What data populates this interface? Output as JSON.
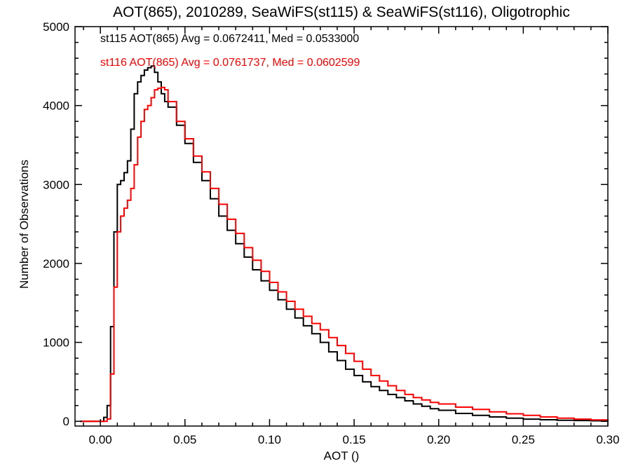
{
  "chart_data": {
    "type": "line",
    "title": "AOT(865), 2010289, SeaWiFS(st115) & SeaWiFS(st116), Oligotrophic",
    "xlabel": "AOT ()",
    "ylabel": "Number of Observations",
    "xlim": [
      -0.015,
      0.3
    ],
    "ylim": [
      -60,
      5000
    ],
    "x_ticks": [
      0.0,
      0.05,
      0.1,
      0.15,
      0.2,
      0.25,
      0.3
    ],
    "x_tick_labels": [
      "0.00",
      "0.05",
      "0.10",
      "0.15",
      "0.20",
      "0.25",
      "0.30"
    ],
    "y_ticks": [
      0,
      1000,
      2000,
      3000,
      4000,
      5000
    ],
    "y_tick_labels": [
      "0",
      "1000",
      "2000",
      "3000",
      "4000",
      "5000"
    ],
    "grid": false,
    "step": true,
    "annotations": [
      {
        "text": "st115 AOT(865) Avg = 0.0672411, Med = 0.0533000",
        "color": "#000000"
      },
      {
        "text": "st116 AOT(865) Avg = 0.0761737, Med = 0.0602599",
        "color": "#ff0000"
      }
    ],
    "series": [
      {
        "color": "#000000",
        "x": [
          -0.012,
          0.0,
          0.002,
          0.004,
          0.006,
          0.008,
          0.01,
          0.012,
          0.014,
          0.016,
          0.018,
          0.02,
          0.022,
          0.024,
          0.026,
          0.028,
          0.03,
          0.032,
          0.034,
          0.036,
          0.038,
          0.04,
          0.045,
          0.05,
          0.055,
          0.06,
          0.065,
          0.07,
          0.075,
          0.08,
          0.085,
          0.09,
          0.095,
          0.1,
          0.105,
          0.11,
          0.115,
          0.12,
          0.125,
          0.13,
          0.135,
          0.14,
          0.145,
          0.15,
          0.155,
          0.16,
          0.165,
          0.17,
          0.175,
          0.18,
          0.185,
          0.19,
          0.195,
          0.2,
          0.21,
          0.22,
          0.23,
          0.24,
          0.25,
          0.26,
          0.27,
          0.28,
          0.29,
          0.3
        ],
        "y": [
          0,
          0,
          50,
          200,
          1200,
          2400,
          3000,
          3050,
          3150,
          3300,
          3700,
          4150,
          4300,
          4380,
          4450,
          4480,
          4500,
          4420,
          4300,
          4150,
          4050,
          3980,
          3750,
          3520,
          3280,
          3050,
          2820,
          2600,
          2420,
          2250,
          2080,
          1920,
          1780,
          1660,
          1540,
          1420,
          1310,
          1210,
          1110,
          1000,
          880,
          770,
          660,
          580,
          500,
          440,
          390,
          340,
          300,
          260,
          220,
          190,
          160,
          140,
          100,
          75,
          55,
          40,
          28,
          20,
          14,
          10,
          7,
          5
        ]
      },
      {
        "color": "#ff0000",
        "x": [
          -0.012,
          0.0,
          0.002,
          0.004,
          0.006,
          0.008,
          0.01,
          0.012,
          0.014,
          0.016,
          0.018,
          0.02,
          0.022,
          0.024,
          0.026,
          0.028,
          0.03,
          0.032,
          0.034,
          0.036,
          0.038,
          0.04,
          0.045,
          0.05,
          0.055,
          0.06,
          0.065,
          0.07,
          0.075,
          0.08,
          0.085,
          0.09,
          0.095,
          0.1,
          0.105,
          0.11,
          0.115,
          0.12,
          0.125,
          0.13,
          0.135,
          0.14,
          0.145,
          0.15,
          0.155,
          0.16,
          0.165,
          0.17,
          0.175,
          0.18,
          0.185,
          0.19,
          0.195,
          0.2,
          0.21,
          0.22,
          0.23,
          0.24,
          0.25,
          0.26,
          0.27,
          0.28,
          0.29,
          0.3
        ],
        "y": [
          0,
          0,
          0,
          30,
          600,
          1700,
          2400,
          2600,
          2700,
          2800,
          2950,
          3250,
          3600,
          3800,
          3950,
          4000,
          4100,
          4200,
          4220,
          4230,
          4200,
          4050,
          3800,
          3580,
          3360,
          3160,
          2950,
          2750,
          2560,
          2380,
          2200,
          2040,
          1900,
          1760,
          1640,
          1520,
          1420,
          1330,
          1240,
          1160,
          1060,
          960,
          860,
          760,
          660,
          580,
          510,
          450,
          390,
          340,
          300,
          270,
          240,
          220,
          180,
          150,
          120,
          95,
          75,
          55,
          40,
          28,
          18,
          10
        ]
      }
    ]
  }
}
